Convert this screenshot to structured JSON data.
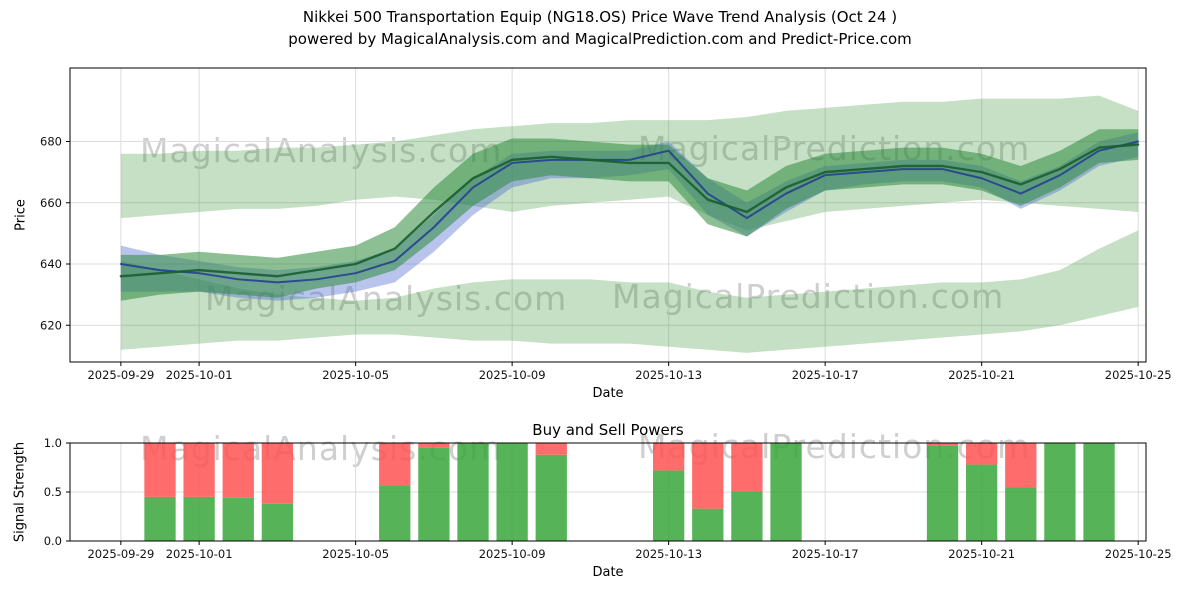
{
  "title_line1": "Nikkei 500 Transportation Equip (NG18.OS) Price Wave Trend Analysis (Oct 24 )",
  "title_line2": "powered by MagicalAnalysis.com and MagicalPrediction.com and Predict-Price.com",
  "watermarks": {
    "analysis": "MagicalAnalysis.com",
    "prediction": "MagicalPrediction.com"
  },
  "colors": {
    "grid": "#dcdcdc",
    "axis": "#000000",
    "watermark": "#a8a8a8",
    "band_green": "#2e8b2e",
    "band_green_core": "#2d8b3c",
    "band_blue": "#4663d0",
    "line_green": "#1b5e2f",
    "line_blue": "#24418f",
    "buy_green": "#3aa63a",
    "sell_red": "#ff5252"
  },
  "chart_data": [
    {
      "type": "area",
      "title": "",
      "xlabel": "Date",
      "ylabel": "Price",
      "grid": true,
      "legend": "none",
      "ylim": [
        608,
        704
      ],
      "x_domain": [
        -0.3,
        27.2
      ],
      "yticks": [
        {
          "v": 620,
          "label": "620"
        },
        {
          "v": 640,
          "label": "640"
        },
        {
          "v": 660,
          "label": "660"
        },
        {
          "v": 680,
          "label": "680"
        }
      ],
      "xticks": [
        {
          "day": 1,
          "label": "2025-09-29"
        },
        {
          "day": 3,
          "label": "2025-10-01"
        },
        {
          "day": 7,
          "label": "2025-10-05"
        },
        {
          "day": 11,
          "label": "2025-10-09"
        },
        {
          "day": 15,
          "label": "2025-10-13"
        },
        {
          "day": 19,
          "label": "2025-10-17"
        },
        {
          "day": 23,
          "label": "2025-10-21"
        },
        {
          "day": 27,
          "label": "2025-10-25"
        }
      ],
      "days": [
        1,
        2,
        3,
        4,
        5,
        6,
        7,
        8,
        9,
        10,
        11,
        12,
        13,
        14,
        15,
        16,
        17,
        18,
        19,
        20,
        21,
        22,
        23,
        24,
        25,
        26,
        27
      ],
      "bands": [
        {
          "name": "outer-upper-forecast-band",
          "color": "#2e8b2e",
          "opacity": 0.27,
          "top": [
            676,
            676,
            677,
            677,
            678,
            678,
            679,
            680,
            682,
            684,
            685,
            686,
            686,
            687,
            687,
            687,
            688,
            690,
            691,
            692,
            693,
            693,
            694,
            694,
            694,
            695,
            690
          ],
          "bottom": [
            655,
            656,
            657,
            658,
            658,
            659,
            661,
            662,
            661,
            659,
            657,
            659,
            660,
            661,
            662,
            656,
            651,
            654,
            657,
            658,
            659,
            660,
            661,
            660,
            659,
            658,
            657
          ]
        },
        {
          "name": "outer-lower-forecast-band",
          "color": "#2e8b2e",
          "opacity": 0.27,
          "top": [
            641,
            638,
            635,
            632,
            630,
            629,
            628,
            629,
            632,
            634,
            635,
            635,
            635,
            634,
            634,
            631,
            629,
            630,
            631,
            632,
            633,
            634,
            634,
            635,
            638,
            645,
            651
          ],
          "bottom": [
            612,
            613,
            614,
            615,
            615,
            616,
            617,
            617,
            616,
            615,
            615,
            614,
            614,
            614,
            613,
            612,
            611,
            612,
            613,
            614,
            615,
            616,
            617,
            618,
            620,
            623,
            626
          ]
        },
        {
          "name": "core-blue-wave-band",
          "color": "#4663d0",
          "opacity": 0.38,
          "top": [
            646,
            643,
            641,
            639,
            638,
            639,
            641,
            645,
            656,
            668,
            676,
            677,
            677,
            677,
            680,
            668,
            660,
            667,
            672,
            673,
            674,
            674,
            672,
            667,
            672,
            680,
            683
          ],
          "bottom": [
            631,
            631,
            631,
            629,
            628,
            629,
            631,
            634,
            644,
            656,
            665,
            668,
            668,
            669,
            671,
            656,
            649,
            657,
            664,
            666,
            667,
            667,
            665,
            658,
            664,
            672,
            675
          ]
        },
        {
          "name": "core-green-wave-band",
          "color": "#2d8b3c",
          "opacity": 0.55,
          "top": [
            643,
            643,
            644,
            643,
            642,
            644,
            646,
            652,
            665,
            676,
            681,
            681,
            680,
            679,
            679,
            668,
            664,
            672,
            676,
            677,
            678,
            678,
            676,
            672,
            677,
            684,
            684
          ],
          "bottom": [
            628,
            630,
            631,
            630,
            629,
            632,
            634,
            638,
            648,
            659,
            667,
            669,
            668,
            667,
            667,
            653,
            649,
            658,
            664,
            665,
            666,
            666,
            664,
            659,
            665,
            673,
            674
          ]
        }
      ],
      "lines": [
        {
          "name": "blue-trend-line",
          "color": "#24418f",
          "width": 2,
          "values": [
            640,
            638,
            637,
            635,
            634,
            635,
            637,
            641,
            652,
            665,
            673,
            674,
            674,
            674,
            677,
            663,
            655,
            663,
            669,
            670,
            671,
            671,
            668,
            663,
            669,
            677,
            680
          ]
        },
        {
          "name": "green-trend-line",
          "color": "#1b5e2f",
          "width": 2.4,
          "values": [
            636,
            637,
            638,
            637,
            636,
            638,
            640,
            645,
            657,
            668,
            674,
            675,
            674,
            673,
            673,
            661,
            657,
            665,
            670,
            671,
            672,
            672,
            670,
            666,
            671,
            678,
            679
          ]
        }
      ]
    },
    {
      "type": "bar",
      "title": "Buy and Sell Powers",
      "xlabel": "Date",
      "ylabel": "Signal Strength",
      "grid": true,
      "stacked": true,
      "ylim": [
        0,
        1.0
      ],
      "yticks": [
        {
          "v": 0,
          "label": "0.0"
        },
        {
          "v": 0.5,
          "label": "0.5"
        },
        {
          "v": 1,
          "label": "1.0"
        }
      ],
      "series": [
        {
          "name": "Buy",
          "color": "#3aa63a"
        },
        {
          "name": "Sell",
          "color": "#ff5252"
        }
      ],
      "bars": [
        {
          "date": "2025-09-30",
          "day": 2,
          "buy": 0.45,
          "sell": 0.55
        },
        {
          "date": "2025-10-01",
          "day": 3,
          "buy": 0.45,
          "sell": 0.55
        },
        {
          "date": "2025-10-02",
          "day": 4,
          "buy": 0.44,
          "sell": 0.56
        },
        {
          "date": "2025-10-03",
          "day": 5,
          "buy": 0.38,
          "sell": 0.62
        },
        {
          "date": "2025-10-06",
          "day": 8,
          "buy": 0.57,
          "sell": 0.43
        },
        {
          "date": "2025-10-07",
          "day": 9,
          "buy": 0.95,
          "sell": 0.05
        },
        {
          "date": "2025-10-08",
          "day": 10,
          "buy": 1.0,
          "sell": 0.0
        },
        {
          "date": "2025-10-09",
          "day": 11,
          "buy": 1.0,
          "sell": 0.0
        },
        {
          "date": "2025-10-10",
          "day": 12,
          "buy": 0.88,
          "sell": 0.12
        },
        {
          "date": "2025-10-13",
          "day": 15,
          "buy": 0.72,
          "sell": 0.28
        },
        {
          "date": "2025-10-14",
          "day": 16,
          "buy": 0.33,
          "sell": 0.67
        },
        {
          "date": "2025-10-15",
          "day": 17,
          "buy": 0.5,
          "sell": 0.5
        },
        {
          "date": "2025-10-16",
          "day": 18,
          "buy": 1.0,
          "sell": 0.0
        },
        {
          "date": "2025-10-20",
          "day": 22,
          "buy": 0.97,
          "sell": 0.03
        },
        {
          "date": "2025-10-21",
          "day": 23,
          "buy": 0.78,
          "sell": 0.22
        },
        {
          "date": "2025-10-22",
          "day": 24,
          "buy": 0.55,
          "sell": 0.45
        },
        {
          "date": "2025-10-23",
          "day": 25,
          "buy": 1.0,
          "sell": 0.0
        },
        {
          "date": "2025-10-24",
          "day": 26,
          "buy": 1.0,
          "sell": 0.0
        }
      ]
    }
  ]
}
